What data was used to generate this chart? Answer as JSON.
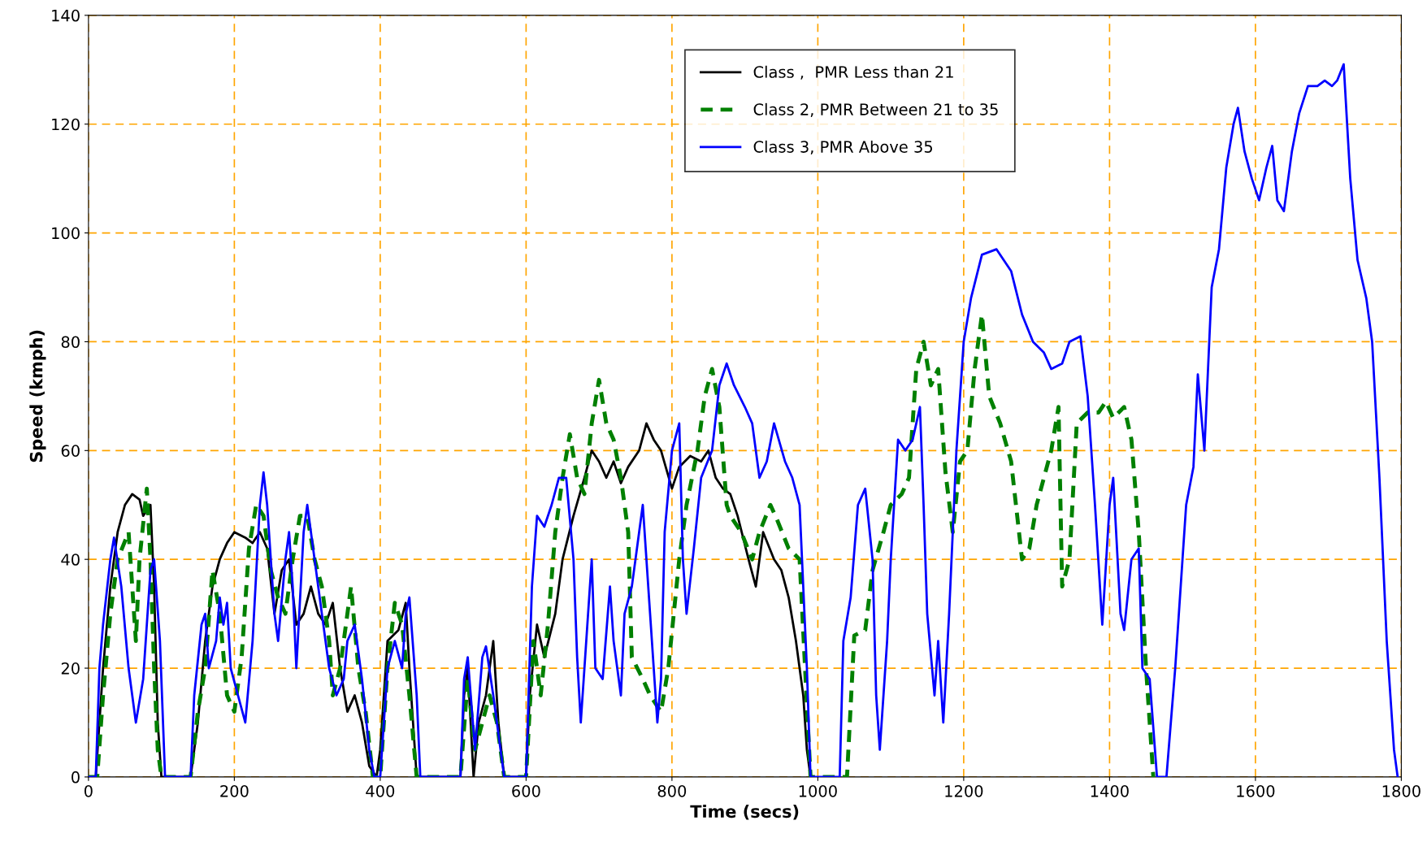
{
  "chart_data": {
    "type": "line",
    "xlabel": "Time (secs)",
    "ylabel": "Speed (kmph)",
    "xlim": [
      0,
      1800
    ],
    "xticks": [
      0,
      200,
      400,
      600,
      800,
      1000,
      1200,
      1400,
      1600,
      1800
    ],
    "ylim": [
      0,
      140
    ],
    "yticks": [
      0,
      20,
      40,
      60,
      80,
      100,
      120,
      140
    ],
    "grid": true,
    "legend": "top",
    "marker": "none",
    "series": [
      {
        "name": "Class ,  PMR Less than 21",
        "color": "#000000",
        "line_style": "solid",
        "x": [
          0,
          10,
          15,
          20,
          30,
          40,
          50,
          60,
          70,
          75,
          85,
          90,
          95,
          100,
          140,
          150,
          160,
          170,
          180,
          190,
          200,
          215,
          225,
          235,
          245,
          255,
          265,
          275,
          285,
          295,
          305,
          315,
          325,
          335,
          345,
          355,
          365,
          375,
          385,
          395,
          400,
          410,
          425,
          435,
          440,
          450,
          510,
          515,
          520,
          528,
          535,
          545,
          555,
          562,
          570,
          600,
          605,
          615,
          625,
          640,
          650,
          665,
          680,
          690,
          700,
          710,
          720,
          730,
          740,
          755,
          765,
          775,
          785,
          800,
          810,
          825,
          840,
          850,
          860,
          870,
          880,
          890,
          905,
          915,
          925,
          940,
          950,
          960,
          970,
          980,
          985,
          990
        ],
        "values": [
          0,
          0,
          10,
          20,
          35,
          45,
          50,
          52,
          51,
          48,
          50,
          35,
          10,
          0,
          0,
          10,
          25,
          35,
          40,
          43,
          45,
          44,
          43,
          45,
          42,
          30,
          38,
          40,
          28,
          30,
          35,
          30,
          28,
          32,
          20,
          12,
          15,
          10,
          2,
          0,
          5,
          25,
          27,
          32,
          20,
          0,
          0,
          15,
          20,
          0,
          10,
          15,
          25,
          10,
          0,
          0,
          15,
          28,
          22,
          30,
          40,
          48,
          55,
          60,
          58,
          55,
          58,
          54,
          57,
          60,
          65,
          62,
          60,
          53,
          57,
          59,
          58,
          60,
          55,
          53,
          52,
          48,
          40,
          35,
          45,
          40,
          38,
          33,
          25,
          15,
          5,
          0
        ]
      },
      {
        "name": "Class 2, PMR Between 21 to 35",
        "color": "#008000",
        "line_style": "dashed",
        "x": [
          0,
          12,
          20,
          30,
          40,
          55,
          65,
          70,
          80,
          85,
          90,
          95,
          100,
          140,
          150,
          160,
          170,
          180,
          190,
          200,
          210,
          220,
          230,
          240,
          250,
          260,
          270,
          280,
          290,
          300,
          310,
          320,
          330,
          335,
          345,
          360,
          370,
          380,
          390,
          400,
          410,
          420,
          430,
          440,
          450,
          510,
          520,
          530,
          540,
          550,
          560,
          570,
          600,
          610,
          620,
          630,
          640,
          650,
          660,
          670,
          680,
          690,
          700,
          710,
          720,
          730,
          740,
          745,
          760,
          770,
          785,
          795,
          810,
          820,
          835,
          845,
          855,
          865,
          875,
          880,
          895,
          910,
          920,
          935,
          945,
          960,
          975,
          990,
          1040,
          1050,
          1065,
          1075,
          1090,
          1100,
          1115,
          1125,
          1135,
          1145,
          1155,
          1165,
          1175,
          1185,
          1195,
          1205,
          1215,
          1225,
          1235,
          1250,
          1265,
          1280,
          1290,
          1300,
          1320,
          1330,
          1335,
          1345,
          1355,
          1370,
          1385,
          1395,
          1405,
          1420,
          1430,
          1440,
          1450,
          1460
        ],
        "values": [
          0,
          0,
          15,
          30,
          40,
          45,
          25,
          40,
          53,
          40,
          20,
          5,
          0,
          0,
          12,
          20,
          38,
          30,
          15,
          12,
          22,
          42,
          50,
          48,
          38,
          33,
          30,
          40,
          48,
          48,
          40,
          35,
          25,
          15,
          20,
          35,
          20,
          12,
          0,
          0,
          20,
          32,
          28,
          15,
          0,
          0,
          18,
          5,
          10,
          15,
          10,
          0,
          0,
          25,
          15,
          28,
          45,
          55,
          63,
          55,
          52,
          65,
          73,
          65,
          62,
          55,
          45,
          22,
          18,
          15,
          12,
          20,
          40,
          50,
          60,
          70,
          75,
          68,
          50,
          48,
          45,
          40,
          45,
          50,
          47,
          42,
          40,
          0,
          0,
          26,
          27,
          38,
          45,
          50,
          52,
          55,
          75,
          80,
          72,
          75,
          56,
          45,
          58,
          60,
          75,
          85,
          70,
          65,
          58,
          40,
          42,
          50,
          60,
          68,
          35,
          40,
          65,
          67,
          67,
          69,
          66,
          68,
          62,
          45,
          20,
          0
        ]
      },
      {
        "name": "Class 3, PMR Above 35",
        "color": "#0000ff",
        "line_style": "solid",
        "x": [
          0,
          10,
          15,
          20,
          30,
          35,
          45,
          55,
          65,
          75,
          85,
          90,
          98,
          105,
          140,
          145,
          155,
          160,
          165,
          175,
          180,
          185,
          190,
          195,
          205,
          215,
          225,
          235,
          240,
          245,
          255,
          260,
          270,
          275,
          280,
          285,
          295,
          300,
          310,
          320,
          330,
          340,
          350,
          355,
          365,
          375,
          385,
          392,
          400,
          410,
          420,
          430,
          435,
          440,
          450,
          455,
          510,
          515,
          520,
          530,
          540,
          545,
          555,
          565,
          570,
          600,
          608,
          615,
          625,
          635,
          645,
          655,
          665,
          670,
          675,
          685,
          690,
          695,
          705,
          715,
          720,
          730,
          735,
          745,
          755,
          760,
          770,
          780,
          785,
          790,
          800,
          810,
          815,
          820,
          830,
          840,
          855,
          865,
          875,
          885,
          900,
          910,
          920,
          930,
          940,
          955,
          965,
          975,
          985,
          990,
          1030,
          1035,
          1045,
          1055,
          1065,
          1075,
          1080,
          1085,
          1095,
          1100,
          1110,
          1120,
          1130,
          1140,
          1145,
          1150,
          1160,
          1165,
          1172,
          1180,
          1190,
          1200,
          1210,
          1225,
          1245,
          1265,
          1280,
          1295,
          1310,
          1320,
          1335,
          1345,
          1360,
          1370,
          1380,
          1390,
          1400,
          1405,
          1415,
          1420,
          1430,
          1440,
          1445,
          1455,
          1465,
          1478,
          1490,
          1500,
          1505,
          1515,
          1521,
          1530,
          1540,
          1550,
          1560,
          1570,
          1576,
          1585,
          1595,
          1605,
          1615,
          1623,
          1630,
          1639,
          1650,
          1660,
          1672,
          1685,
          1695,
          1705,
          1712,
          1721,
          1730,
          1740,
          1752,
          1760,
          1770,
          1780,
          1790,
          1795
        ],
        "values": [
          0,
          0,
          20,
          28,
          40,
          44,
          35,
          20,
          10,
          18,
          38,
          40,
          25,
          0,
          0,
          15,
          28,
          30,
          20,
          25,
          33,
          28,
          32,
          20,
          15,
          10,
          25,
          50,
          56,
          50,
          30,
          25,
          40,
          45,
          35,
          20,
          45,
          50,
          40,
          30,
          20,
          15,
          18,
          25,
          28,
          18,
          5,
          0,
          0,
          20,
          25,
          20,
          30,
          33,
          15,
          0,
          0,
          18,
          22,
          5,
          22,
          24,
          15,
          5,
          0,
          0,
          35,
          48,
          46,
          50,
          55,
          55,
          40,
          22,
          10,
          30,
          40,
          20,
          18,
          35,
          25,
          15,
          30,
          35,
          45,
          50,
          30,
          10,
          18,
          45,
          60,
          65,
          40,
          30,
          42,
          55,
          60,
          72,
          76,
          72,
          68,
          65,
          55,
          58,
          65,
          58,
          55,
          50,
          20,
          0,
          0,
          25,
          33,
          50,
          53,
          40,
          15,
          5,
          25,
          40,
          62,
          60,
          62,
          68,
          50,
          30,
          15,
          25,
          10,
          30,
          60,
          80,
          88,
          96,
          97,
          93,
          85,
          80,
          78,
          75,
          76,
          80,
          81,
          70,
          50,
          28,
          50,
          55,
          30,
          27,
          40,
          42,
          20,
          18,
          0,
          0,
          20,
          40,
          50,
          57,
          74,
          60,
          90,
          97,
          112,
          120,
          123,
          115,
          110,
          106,
          112,
          116,
          106,
          104,
          115,
          122,
          127,
          127,
          128,
          127,
          128,
          131,
          110,
          95,
          88,
          80,
          55,
          25,
          5,
          0
        ]
      }
    ]
  }
}
